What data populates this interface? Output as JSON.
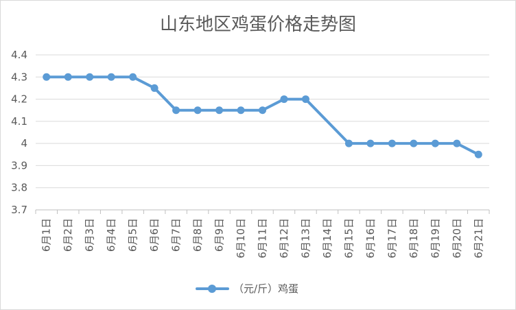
{
  "chart_data": {
    "type": "line",
    "title": "山东地区鸡蛋价格走势图",
    "xlabel": "",
    "ylabel": "",
    "categories": [
      "6月1日",
      "6月2日",
      "6月3日",
      "6月4日",
      "6月5日",
      "6月6日",
      "6月7日",
      "6月8日",
      "6月9日",
      "6月10日",
      "6月11日",
      "6月12日",
      "6月13日",
      "6月14日",
      "6月15日",
      "6月16日",
      "6月17日",
      "6月18日",
      "6月19日",
      "6月20日",
      "6月21日"
    ],
    "series": [
      {
        "name": "（元/斤）鸡蛋",
        "values": [
          4.3,
          4.3,
          4.3,
          4.3,
          4.3,
          4.25,
          4.15,
          4.15,
          4.15,
          4.15,
          4.15,
          4.2,
          4.2,
          null,
          4.0,
          4.0,
          4.0,
          4.0,
          4.0,
          4.0,
          3.95
        ],
        "color": "#5b9bd5"
      }
    ],
    "ylim": [
      3.7,
      4.4
    ],
    "yticks": [
      "3.7",
      "3.8",
      "3.9",
      "4",
      "4.1",
      "4.2",
      "4.3",
      "4.4"
    ],
    "grid": true,
    "legend": "bottom"
  }
}
